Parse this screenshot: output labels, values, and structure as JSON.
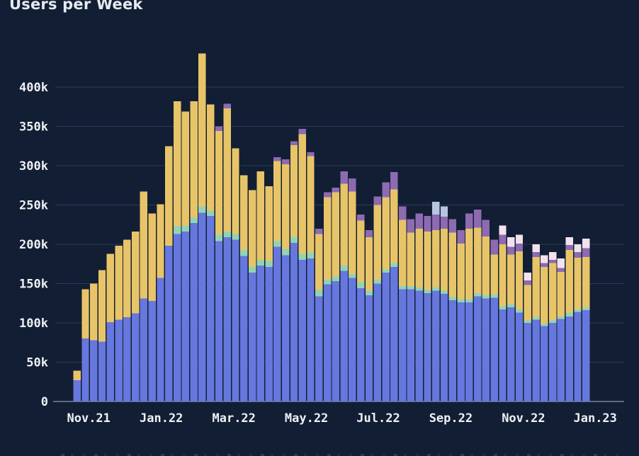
{
  "title": "Users per Week",
  "colors": {
    "background": "#121e33",
    "title_text": "#e6eaf1",
    "tick_text": "#eef1f6",
    "gridline": "#2d3a54",
    "zero_axis_line": "#5e6a7e",
    "series_blue": "#6677de",
    "series_teal": "#93d3b4",
    "series_yellow": "#e8c469",
    "series_purple": "#8d6ab2",
    "series_lightblue": "#b7c6df",
    "series_pink": "#f2e2ee"
  },
  "chart_data": {
    "type": "bar",
    "stacked": true,
    "title": "Users per Week",
    "xlabel": "",
    "ylabel": "",
    "values_unit": "thousands of users",
    "n_weeks": 62,
    "x_range_note": "weekly bars from Nov 2021 to Jan 2023",
    "grid": "horizontal",
    "legend": "none",
    "ylim": [
      0,
      443
    ],
    "y_tick_labels": [
      "0",
      "50k",
      "100k",
      "150k",
      "200k",
      "250k",
      "300k",
      "350k",
      "400k"
    ],
    "y_tick_values": [
      0,
      50,
      100,
      150,
      200,
      250,
      300,
      350,
      400
    ],
    "x_tick_labels": [
      "Nov.21",
      "Jan.22",
      "Mar.22",
      "May.22",
      "Jul.22",
      "Sep.22",
      "Nov.22",
      "Jan.23"
    ],
    "x_tick_week_index": [
      1.4,
      10.1,
      18.8,
      27.5,
      36.1,
      44.8,
      53.5,
      62.1
    ],
    "series": [
      {
        "name": "blue-base",
        "color_key": "series_blue",
        "values": [
          27,
          80,
          78,
          76,
          101,
          104,
          107,
          112,
          131,
          128,
          157,
          198,
          213,
          216,
          227,
          240,
          236,
          204,
          209,
          206,
          185,
          164,
          173,
          171,
          197,
          186,
          202,
          180,
          182,
          134,
          149,
          153,
          166,
          157,
          144,
          135,
          150,
          164,
          171,
          143,
          143,
          141,
          138,
          141,
          137,
          129,
          126,
          126,
          134,
          131,
          132,
          117,
          120,
          113,
          100,
          104,
          96,
          100,
          105,
          108,
          114,
          116
        ]
      },
      {
        "name": "teal",
        "color_key": "series_teal",
        "values": [
          0,
          0,
          0,
          0,
          0,
          0,
          0,
          0,
          0,
          0,
          0,
          0,
          10,
          8,
          7,
          8,
          7,
          8,
          7,
          7,
          8,
          7,
          7,
          8,
          7,
          8,
          7,
          8,
          7,
          8,
          6,
          6,
          7,
          5,
          8,
          6,
          5,
          4,
          5,
          4,
          4,
          4,
          4,
          4,
          4,
          4,
          4,
          4,
          4,
          4,
          4,
          4,
          4,
          4,
          3,
          3,
          3,
          3,
          3,
          5,
          3,
          4
        ]
      },
      {
        "name": "yellow",
        "color_key": "series_yellow",
        "values": [
          12,
          63,
          72,
          91,
          87,
          94,
          99,
          104,
          136,
          111,
          94,
          127,
          159,
          145,
          148,
          195,
          135,
          132,
          157,
          109,
          95,
          98,
          113,
          95,
          102,
          108,
          117,
          152,
          123,
          71,
          105,
          107,
          104,
          105,
          78,
          68,
          95,
          92,
          94,
          84,
          68,
          75,
          74,
          73,
          79,
          82,
          71,
          90,
          83,
          75,
          51,
          79,
          63,
          74,
          45,
          77,
          72,
          73,
          57,
          80,
          66,
          64
        ]
      },
      {
        "name": "purple",
        "color_key": "series_purple",
        "values": [
          0,
          0,
          0,
          0,
          0,
          0,
          0,
          0,
          0,
          0,
          0,
          0,
          0,
          0,
          0,
          0,
          0,
          6,
          6,
          0,
          0,
          0,
          0,
          0,
          5,
          6,
          5,
          7,
          5,
          7,
          6,
          6,
          16,
          17,
          8,
          9,
          11,
          19,
          22,
          17,
          17,
          19,
          20,
          20,
          15,
          17,
          17,
          19,
          23,
          21,
          19,
          12,
          10,
          10,
          6,
          6,
          5,
          4,
          5,
          6,
          7,
          11
        ]
      },
      {
        "name": "light-blue",
        "color_key": "series_lightblue",
        "values": [
          0,
          0,
          0,
          0,
          0,
          0,
          0,
          0,
          0,
          0,
          0,
          0,
          0,
          0,
          0,
          0,
          0,
          0,
          0,
          0,
          0,
          0,
          0,
          0,
          0,
          0,
          0,
          0,
          0,
          0,
          0,
          0,
          0,
          0,
          0,
          0,
          0,
          0,
          0,
          0,
          0,
          0,
          0,
          16,
          13,
          0,
          0,
          0,
          0,
          0,
          0,
          0,
          0,
          0,
          0,
          0,
          0,
          0,
          0,
          0,
          0,
          0
        ]
      },
      {
        "name": "pale-pink",
        "color_key": "series_pink",
        "values": [
          0,
          0,
          0,
          0,
          0,
          0,
          0,
          0,
          0,
          0,
          0,
          0,
          0,
          0,
          0,
          0,
          0,
          0,
          0,
          0,
          0,
          0,
          0,
          0,
          0,
          0,
          0,
          0,
          0,
          0,
          0,
          0,
          0,
          0,
          0,
          0,
          0,
          0,
          0,
          0,
          0,
          0,
          0,
          0,
          0,
          0,
          0,
          0,
          0,
          0,
          0,
          12,
          12,
          11,
          10,
          10,
          10,
          10,
          12,
          10,
          10,
          12
        ]
      }
    ]
  }
}
